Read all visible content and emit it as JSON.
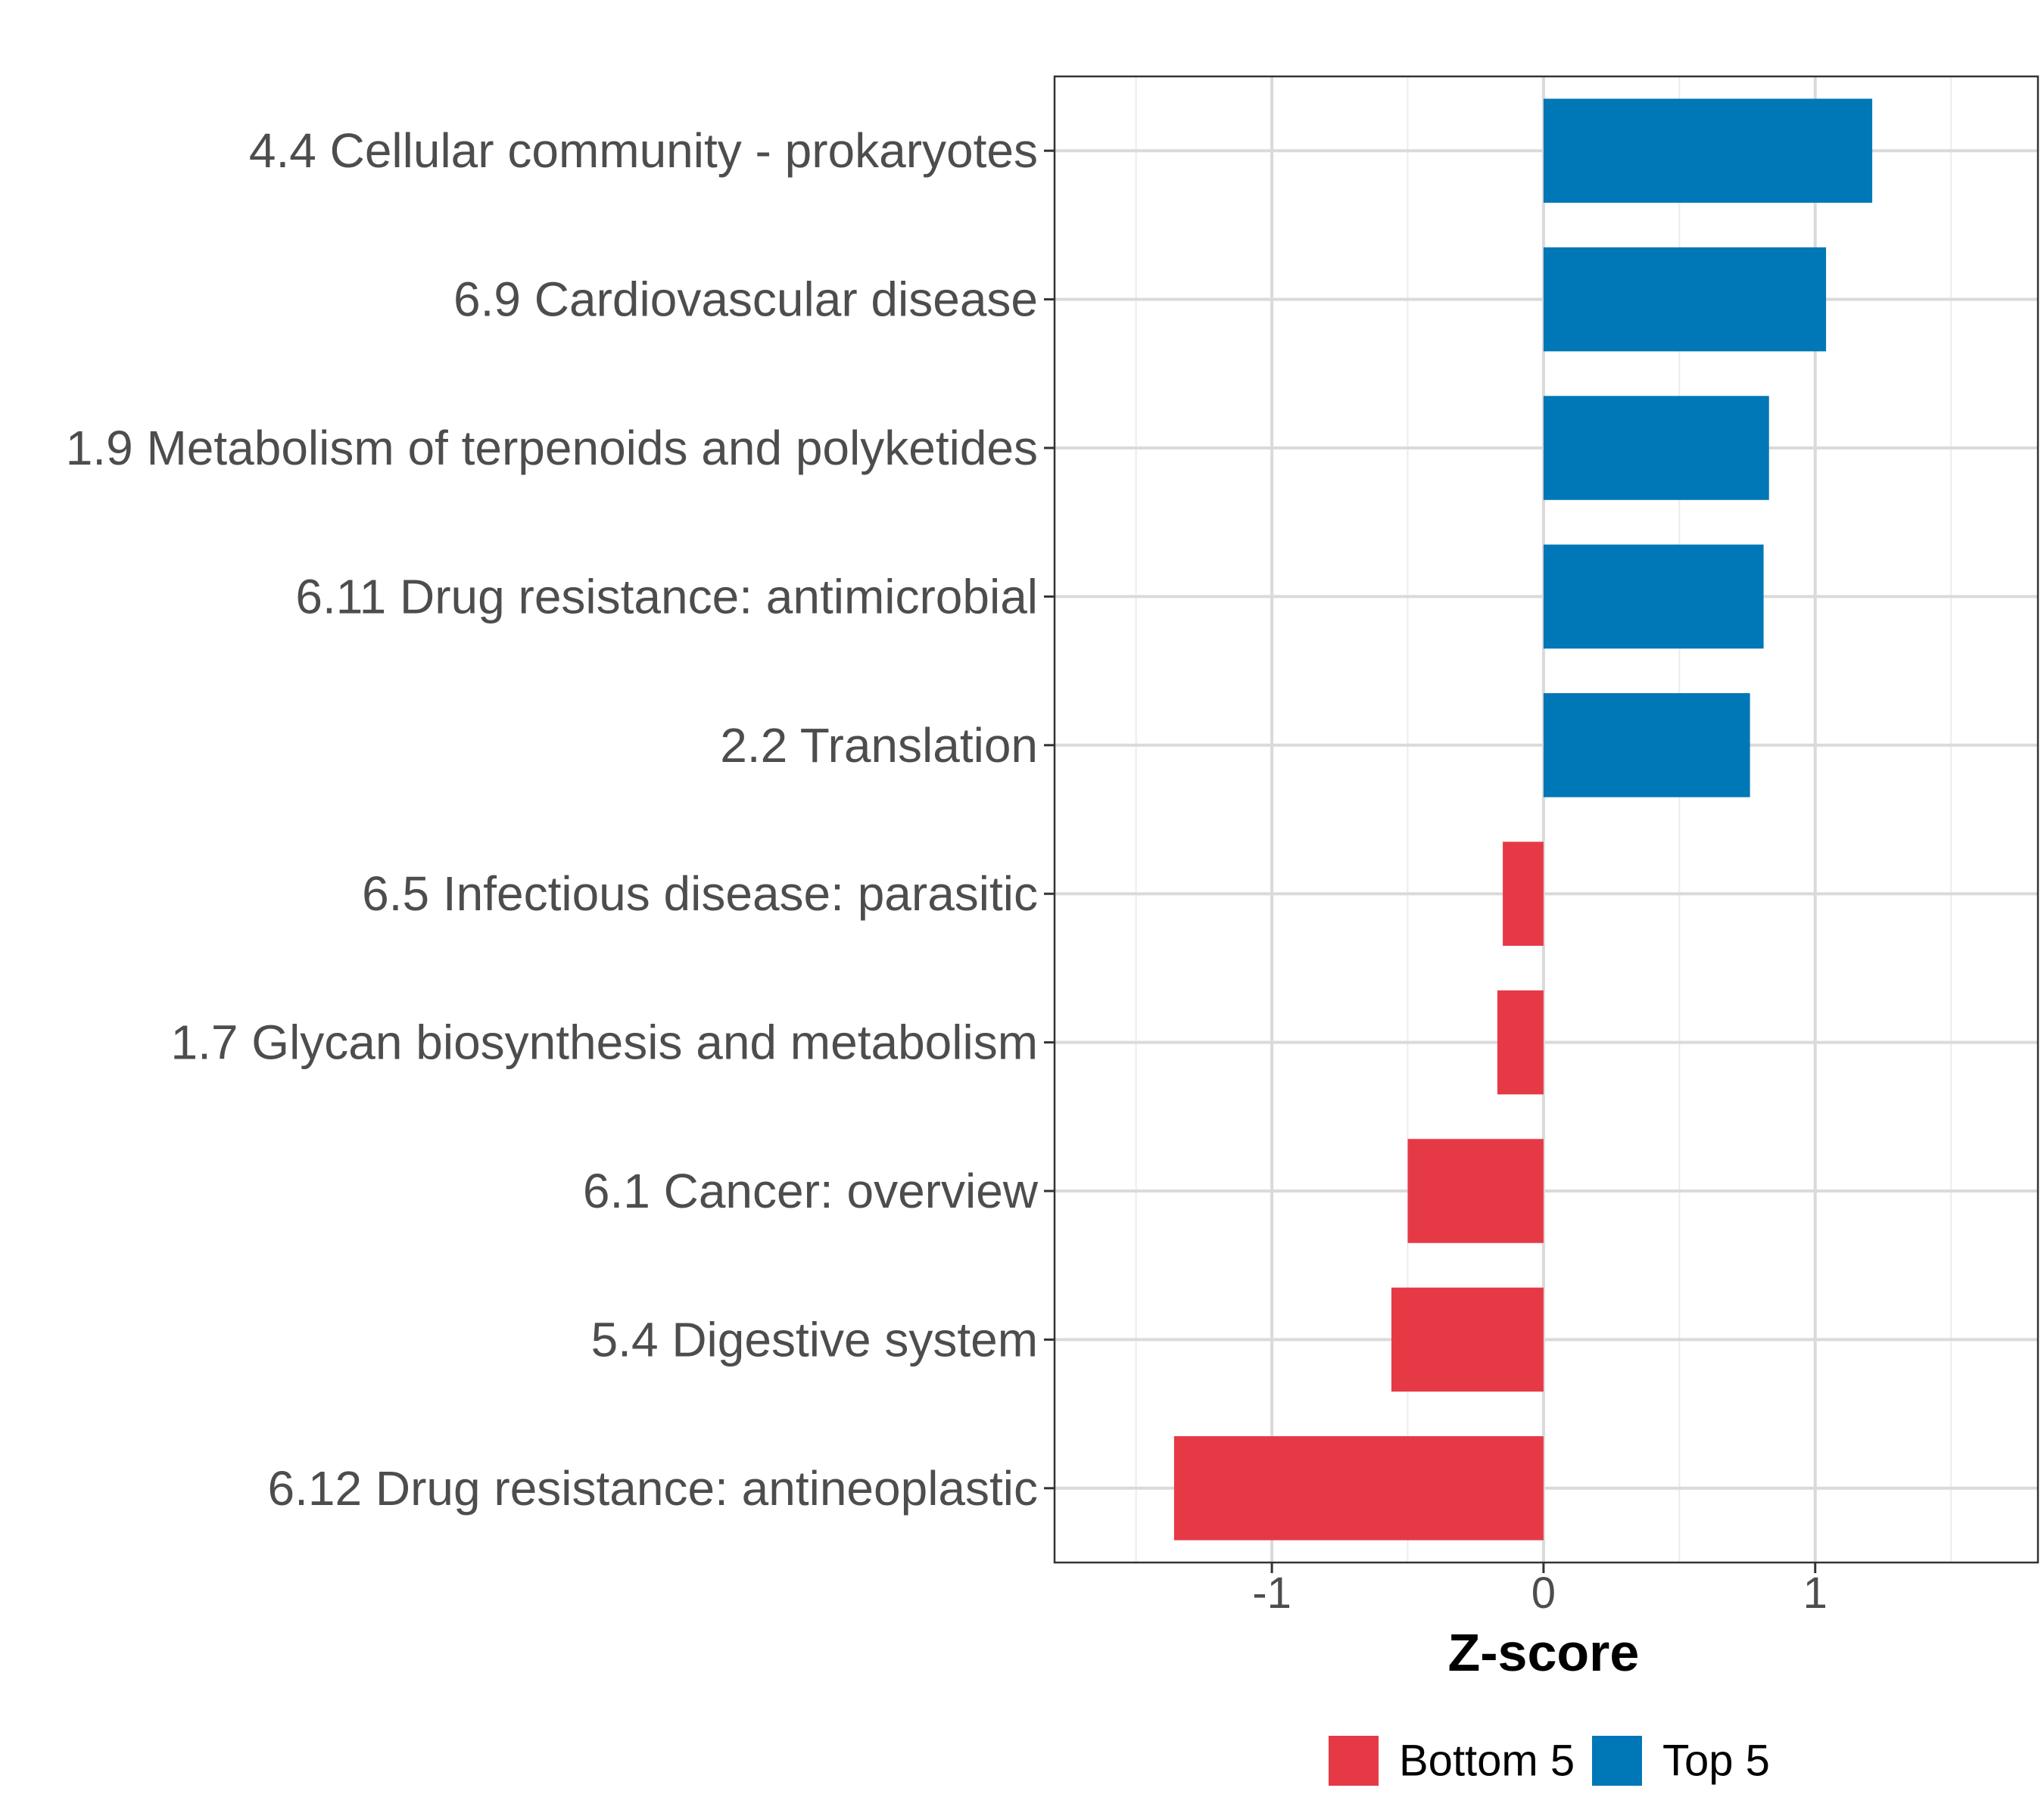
{
  "chart_data": {
    "type": "bar",
    "orientation": "horizontal",
    "title": "",
    "xlabel": "Z-score",
    "ylabel": "",
    "xlim": [
      -1.8,
      1.82
    ],
    "xticks": [
      -1,
      0,
      1
    ],
    "xtick_labels": [
      "-1",
      "0",
      "1"
    ],
    "grid": true,
    "legend_position": "bottom",
    "categories": [
      "4.4 Cellular community - prokaryotes",
      "6.9 Cardiovascular disease",
      "1.9 Metabolism of terpenoids and polyketides",
      "6.11 Drug resistance: antimicrobial",
      "2.2 Translation",
      "6.5 Infectious disease: parasitic",
      "1.7 Glycan biosynthesis and metabolism",
      "6.1 Cancer: overview",
      "5.4 Digestive system",
      "6.12 Drug resistance: antineoplastic"
    ],
    "values": [
      1.21,
      1.04,
      0.83,
      0.81,
      0.76,
      -0.15,
      -0.17,
      -0.5,
      -0.56,
      -1.36
    ],
    "groups": [
      "Top 5",
      "Top 5",
      "Top 5",
      "Top 5",
      "Top 5",
      "Bottom 5",
      "Bottom 5",
      "Bottom 5",
      "Bottom 5",
      "Bottom 5"
    ],
    "legend": [
      {
        "name": "Bottom 5",
        "color": "#e63946"
      },
      {
        "name": "Top 5",
        "color": "#0077b6"
      }
    ]
  }
}
